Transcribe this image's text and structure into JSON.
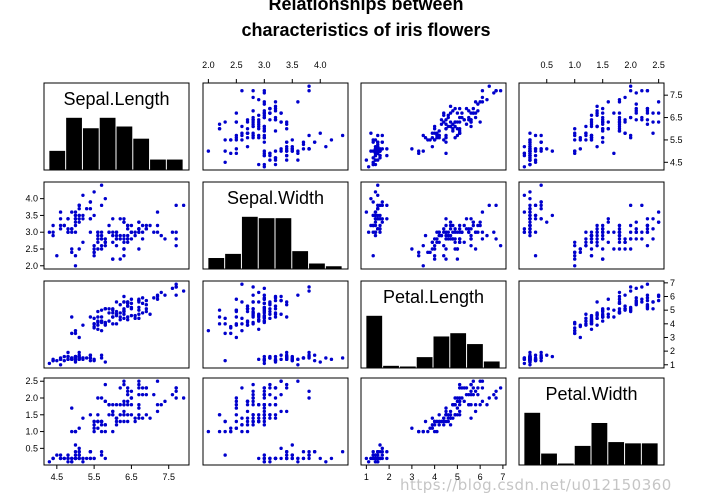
{
  "title_line1": "Relationships between",
  "title_line2": "characteristics of iris flowers",
  "watermark": "https://blog.csdn.net/u012150360",
  "colors": {
    "points": "#0000cc",
    "bars": "#000000",
    "frame": "#000000"
  },
  "chart_data": {
    "type": "scatter",
    "layout": "scatter-matrix",
    "variables": [
      "Sepal.Length",
      "Sepal.Width",
      "Petal.Length",
      "Petal.Width"
    ],
    "diagonal": "histogram",
    "ranges": {
      "Sepal.Length": [
        4.3,
        7.9
      ],
      "Sepal.Width": [
        2.0,
        4.4
      ],
      "Petal.Length": [
        1.0,
        6.9
      ],
      "Petal.Width": [
        0.1,
        2.5
      ]
    },
    "ticks": {
      "Sepal.Length": [
        4.5,
        5.5,
        6.5,
        7.5
      ],
      "Sepal.Width": [
        2.0,
        2.5,
        3.0,
        3.5,
        4.0
      ],
      "Petal.Length": [
        1,
        2,
        3,
        4,
        5,
        6,
        7
      ],
      "Petal.Width": [
        0.5,
        1.0,
        1.5,
        2.0,
        2.5
      ]
    },
    "tick_labels": {
      "Sepal.Length": [
        "4.5",
        "5.5",
        "6.5",
        "7.5"
      ],
      "Sepal.Width": [
        "2.0",
        "2.5",
        "3.0",
        "3.5",
        "4.0"
      ],
      "Petal.Length": [
        "1",
        "2",
        "3",
        "4",
        "5",
        "6",
        "7"
      ],
      "Petal.Width": [
        "0.5",
        "1.0",
        "1.5",
        "2.0",
        "2.5"
      ]
    },
    "petal_length_column_labels": [
      "1",
      "2",
      "3",
      "4",
      "5",
      "6",
      "7"
    ],
    "point_color": "#0000cc",
    "grid": false,
    "observations": [
      [
        5.1,
        3.5,
        1.4,
        0.2
      ],
      [
        4.9,
        3.0,
        1.4,
        0.2
      ],
      [
        4.7,
        3.2,
        1.3,
        0.2
      ],
      [
        4.6,
        3.1,
        1.5,
        0.2
      ],
      [
        5.0,
        3.6,
        1.4,
        0.2
      ],
      [
        5.4,
        3.9,
        1.7,
        0.4
      ],
      [
        4.6,
        3.4,
        1.4,
        0.3
      ],
      [
        5.0,
        3.4,
        1.5,
        0.2
      ],
      [
        4.4,
        2.9,
        1.4,
        0.2
      ],
      [
        4.9,
        3.1,
        1.5,
        0.1
      ],
      [
        5.4,
        3.7,
        1.5,
        0.2
      ],
      [
        4.8,
        3.4,
        1.6,
        0.2
      ],
      [
        4.8,
        3.0,
        1.4,
        0.1
      ],
      [
        4.3,
        3.0,
        1.1,
        0.1
      ],
      [
        5.8,
        4.0,
        1.2,
        0.2
      ],
      [
        5.7,
        4.4,
        1.5,
        0.4
      ],
      [
        5.4,
        3.9,
        1.3,
        0.4
      ],
      [
        5.1,
        3.5,
        1.4,
        0.3
      ],
      [
        5.7,
        3.8,
        1.7,
        0.3
      ],
      [
        5.1,
        3.8,
        1.5,
        0.3
      ],
      [
        5.4,
        3.4,
        1.7,
        0.2
      ],
      [
        5.1,
        3.7,
        1.5,
        0.4
      ],
      [
        4.6,
        3.6,
        1.0,
        0.2
      ],
      [
        5.1,
        3.3,
        1.7,
        0.5
      ],
      [
        4.8,
        3.4,
        1.9,
        0.2
      ],
      [
        5.0,
        3.0,
        1.6,
        0.2
      ],
      [
        5.0,
        3.4,
        1.6,
        0.4
      ],
      [
        5.2,
        3.5,
        1.5,
        0.2
      ],
      [
        5.2,
        3.4,
        1.4,
        0.2
      ],
      [
        4.7,
        3.2,
        1.6,
        0.2
      ],
      [
        4.8,
        3.1,
        1.6,
        0.2
      ],
      [
        5.4,
        3.4,
        1.5,
        0.4
      ],
      [
        5.2,
        4.1,
        1.5,
        0.1
      ],
      [
        5.5,
        4.2,
        1.4,
        0.2
      ],
      [
        4.9,
        3.1,
        1.5,
        0.2
      ],
      [
        5.0,
        3.2,
        1.2,
        0.2
      ],
      [
        5.5,
        3.5,
        1.3,
        0.2
      ],
      [
        4.9,
        3.6,
        1.4,
        0.1
      ],
      [
        4.4,
        3.0,
        1.3,
        0.2
      ],
      [
        5.1,
        3.4,
        1.5,
        0.2
      ],
      [
        5.0,
        3.5,
        1.3,
        0.3
      ],
      [
        4.5,
        2.3,
        1.3,
        0.3
      ],
      [
        4.4,
        3.2,
        1.3,
        0.2
      ],
      [
        5.0,
        3.5,
        1.6,
        0.6
      ],
      [
        5.1,
        3.8,
        1.9,
        0.4
      ],
      [
        4.8,
        3.0,
        1.4,
        0.3
      ],
      [
        5.1,
        3.8,
        1.6,
        0.2
      ],
      [
        4.6,
        3.2,
        1.4,
        0.2
      ],
      [
        5.3,
        3.7,
        1.5,
        0.2
      ],
      [
        5.0,
        3.3,
        1.4,
        0.2
      ],
      [
        7.0,
        3.2,
        4.7,
        1.4
      ],
      [
        6.4,
        3.2,
        4.5,
        1.5
      ],
      [
        6.9,
        3.1,
        4.9,
        1.5
      ],
      [
        5.5,
        2.3,
        4.0,
        1.3
      ],
      [
        6.5,
        2.8,
        4.6,
        1.5
      ],
      [
        5.7,
        2.8,
        4.5,
        1.3
      ],
      [
        6.3,
        3.3,
        4.7,
        1.6
      ],
      [
        4.9,
        2.4,
        3.3,
        1.0
      ],
      [
        6.6,
        2.9,
        4.6,
        1.3
      ],
      [
        5.2,
        2.7,
        3.9,
        1.4
      ],
      [
        5.0,
        2.0,
        3.5,
        1.0
      ],
      [
        5.9,
        3.0,
        4.2,
        1.5
      ],
      [
        6.0,
        2.2,
        4.0,
        1.0
      ],
      [
        6.1,
        2.9,
        4.7,
        1.4
      ],
      [
        5.6,
        2.9,
        3.6,
        1.3
      ],
      [
        6.7,
        3.1,
        4.4,
        1.4
      ],
      [
        5.6,
        3.0,
        4.5,
        1.5
      ],
      [
        5.8,
        2.7,
        4.1,
        1.0
      ],
      [
        6.2,
        2.2,
        4.5,
        1.5
      ],
      [
        5.6,
        2.5,
        3.9,
        1.1
      ],
      [
        5.9,
        3.2,
        4.8,
        1.8
      ],
      [
        6.1,
        2.8,
        4.0,
        1.3
      ],
      [
        6.3,
        2.5,
        4.9,
        1.5
      ],
      [
        6.1,
        2.8,
        4.7,
        1.2
      ],
      [
        6.4,
        2.9,
        4.3,
        1.3
      ],
      [
        6.6,
        3.0,
        4.4,
        1.4
      ],
      [
        6.8,
        2.8,
        4.8,
        1.4
      ],
      [
        6.7,
        3.0,
        5.0,
        1.7
      ],
      [
        6.0,
        2.9,
        4.5,
        1.5
      ],
      [
        5.7,
        2.6,
        3.5,
        1.0
      ],
      [
        5.5,
        2.4,
        3.8,
        1.1
      ],
      [
        5.5,
        2.4,
        3.7,
        1.0
      ],
      [
        5.8,
        2.7,
        3.9,
        1.2
      ],
      [
        6.0,
        2.7,
        5.1,
        1.6
      ],
      [
        5.4,
        3.0,
        4.5,
        1.5
      ],
      [
        6.0,
        3.4,
        4.5,
        1.6
      ],
      [
        6.7,
        3.1,
        4.7,
        1.5
      ],
      [
        6.3,
        2.3,
        4.4,
        1.3
      ],
      [
        5.6,
        3.0,
        4.1,
        1.3
      ],
      [
        5.5,
        2.5,
        4.0,
        1.3
      ],
      [
        5.5,
        2.6,
        4.4,
        1.2
      ],
      [
        6.1,
        3.0,
        4.6,
        1.4
      ],
      [
        5.8,
        2.6,
        4.0,
        1.2
      ],
      [
        5.0,
        2.3,
        3.3,
        1.0
      ],
      [
        5.6,
        2.7,
        4.2,
        1.3
      ],
      [
        5.7,
        3.0,
        4.2,
        1.2
      ],
      [
        5.7,
        2.9,
        4.2,
        1.3
      ],
      [
        6.2,
        2.9,
        4.3,
        1.3
      ],
      [
        5.1,
        2.5,
        3.0,
        1.1
      ],
      [
        5.7,
        2.8,
        4.1,
        1.3
      ],
      [
        6.3,
        3.3,
        6.0,
        2.5
      ],
      [
        5.8,
        2.7,
        5.1,
        1.9
      ],
      [
        7.1,
        3.0,
        5.9,
        2.1
      ],
      [
        6.3,
        2.9,
        5.6,
        1.8
      ],
      [
        6.5,
        3.0,
        5.8,
        2.2
      ],
      [
        7.6,
        3.0,
        6.6,
        2.1
      ],
      [
        4.9,
        2.5,
        4.5,
        1.7
      ],
      [
        7.3,
        2.9,
        6.3,
        1.8
      ],
      [
        6.7,
        2.5,
        5.8,
        1.8
      ],
      [
        7.2,
        3.6,
        6.1,
        2.5
      ],
      [
        6.5,
        3.2,
        5.1,
        2.0
      ],
      [
        6.4,
        2.7,
        5.3,
        1.9
      ],
      [
        6.8,
        3.0,
        5.5,
        2.1
      ],
      [
        5.7,
        2.5,
        5.0,
        2.0
      ],
      [
        5.8,
        2.8,
        5.1,
        2.4
      ],
      [
        6.4,
        3.2,
        5.3,
        2.3
      ],
      [
        6.5,
        3.0,
        5.5,
        1.8
      ],
      [
        7.7,
        3.8,
        6.7,
        2.2
      ],
      [
        7.7,
        2.6,
        6.9,
        2.3
      ],
      [
        6.0,
        2.2,
        5.0,
        1.5
      ],
      [
        6.9,
        3.2,
        5.7,
        2.3
      ],
      [
        5.6,
        2.8,
        4.9,
        2.0
      ],
      [
        7.7,
        2.8,
        6.7,
        2.0
      ],
      [
        6.3,
        2.7,
        4.9,
        1.8
      ],
      [
        6.7,
        3.3,
        5.7,
        2.1
      ],
      [
        7.2,
        3.2,
        6.0,
        1.8
      ],
      [
        6.2,
        2.8,
        4.8,
        1.8
      ],
      [
        6.1,
        3.0,
        4.9,
        1.8
      ],
      [
        6.4,
        2.8,
        5.6,
        2.1
      ],
      [
        7.2,
        3.0,
        5.8,
        1.6
      ],
      [
        7.4,
        2.8,
        6.1,
        1.9
      ],
      [
        7.9,
        3.8,
        6.4,
        2.0
      ],
      [
        6.4,
        2.8,
        5.6,
        2.2
      ],
      [
        6.3,
        2.8,
        5.1,
        1.5
      ],
      [
        6.1,
        2.6,
        5.6,
        1.4
      ],
      [
        7.7,
        3.0,
        6.1,
        2.3
      ],
      [
        6.3,
        3.4,
        5.6,
        2.4
      ],
      [
        6.4,
        3.1,
        5.5,
        1.8
      ],
      [
        6.0,
        3.0,
        4.8,
        1.8
      ],
      [
        6.9,
        3.1,
        5.4,
        2.1
      ],
      [
        6.7,
        3.1,
        5.6,
        2.4
      ],
      [
        6.9,
        3.1,
        5.1,
        2.3
      ],
      [
        5.8,
        2.7,
        5.1,
        1.9
      ],
      [
        6.8,
        3.2,
        5.9,
        2.3
      ],
      [
        6.7,
        3.3,
        5.7,
        2.5
      ],
      [
        6.7,
        3.0,
        5.2,
        2.3
      ],
      [
        6.3,
        2.5,
        5.0,
        1.9
      ],
      [
        6.5,
        3.0,
        5.2,
        2.0
      ],
      [
        6.2,
        3.4,
        5.4,
        2.3
      ],
      [
        5.9,
        3.0,
        5.1,
        1.8
      ]
    ]
  }
}
